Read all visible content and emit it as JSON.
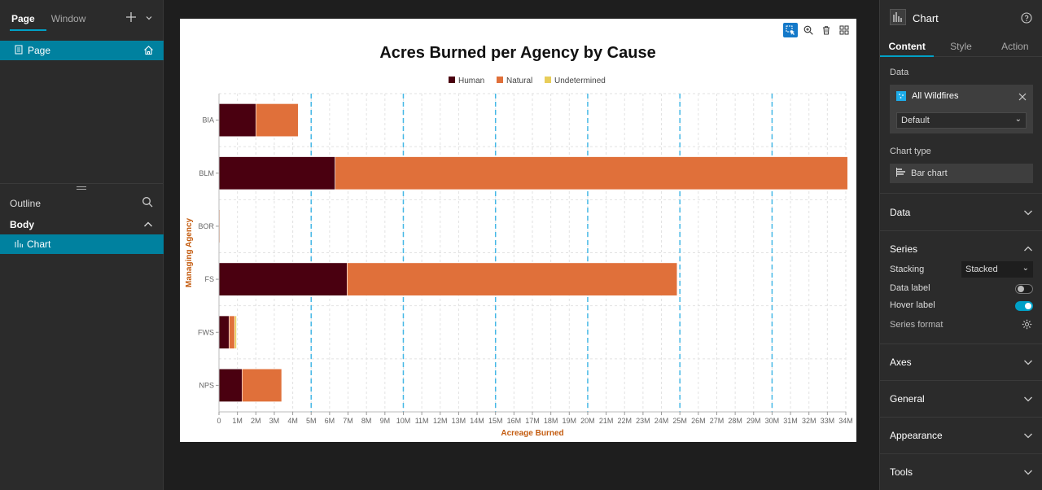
{
  "left_panel": {
    "tabs": [
      "Page",
      "Window"
    ],
    "page_item": "Page",
    "outline_label": "Outline",
    "body_label": "Body",
    "chart_item": "Chart"
  },
  "right_panel": {
    "title": "Chart",
    "tabs": [
      "Content",
      "Style",
      "Action"
    ],
    "data_label": "Data",
    "datasource_name": "All Wildfires",
    "datasource_view": "Default",
    "chart_type_label": "Chart type",
    "chart_type_value": "Bar chart",
    "sections": {
      "data": "Data",
      "series": "Series",
      "axes": "Axes",
      "general": "General",
      "appearance": "Appearance",
      "tools": "Tools"
    },
    "series_options": {
      "stacking_label": "Stacking",
      "stacking_value": "Stacked",
      "data_label": "Data label",
      "data_label_on": false,
      "hover_label": "Hover label",
      "hover_label_on": true,
      "series_format": "Series format"
    }
  },
  "colors": {
    "accent": "#00819f",
    "human": "#4a0010",
    "natural": "#e0703a",
    "undetermined": "#e8cd5a",
    "axis_title": "#c45c10",
    "guide": "#45b8e6"
  },
  "chart_data": {
    "type": "bar",
    "orientation": "horizontal",
    "stacked": true,
    "title": "Acres Burned per Agency by Cause",
    "xlabel": "Acreage Burned",
    "ylabel": "Managing Agency",
    "categories": [
      "BIA",
      "BLM",
      "BOR",
      "FS",
      "FWS",
      "NPS"
    ],
    "series": [
      {
        "name": "Human",
        "color": "#4a0010",
        "values": [
          2000000,
          6300000,
          20000,
          6950000,
          550000,
          1250000
        ]
      },
      {
        "name": "Natural",
        "color": "#e0703a",
        "values": [
          2300000,
          27800000,
          10000,
          17900000,
          300000,
          2150000
        ]
      },
      {
        "name": "Undetermined",
        "color": "#e8cd5a",
        "values": [
          0,
          0,
          0,
          0,
          100000,
          0
        ]
      }
    ],
    "xlim": [
      0,
      34000000
    ],
    "xticks": [
      "0",
      "1M",
      "2M",
      "3M",
      "4M",
      "5M",
      "6M",
      "7M",
      "8M",
      "9M",
      "10M",
      "11M",
      "12M",
      "13M",
      "14M",
      "15M",
      "16M",
      "17M",
      "18M",
      "19M",
      "20M",
      "21M",
      "22M",
      "23M",
      "24M",
      "25M",
      "26M",
      "27M",
      "28M",
      "29M",
      "30M",
      "31M",
      "32M",
      "33M",
      "34M"
    ],
    "guide_lines": [
      5000000,
      10000000,
      15000000,
      20000000,
      25000000,
      30000000
    ],
    "legend_position": "top",
    "grid": true
  }
}
